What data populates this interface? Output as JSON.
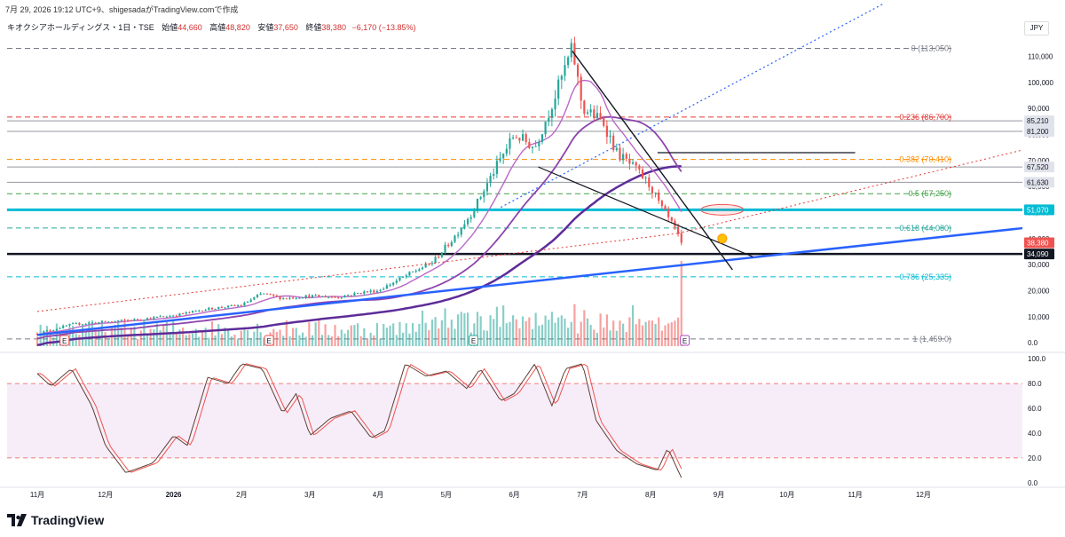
{
  "header": {
    "text": "7月 29, 2026 19:12 UTC+9、shigesadaがTradingView.comで作成"
  },
  "symbol": {
    "name": "キオクシアホールディングス・1日・TSE",
    "open_label": "始値",
    "open": "44,660",
    "high_label": "高値",
    "high": "48,820",
    "low_label": "安値",
    "low": "37,650",
    "close_label": "終値",
    "close": "38,380",
    "change": "−6,170 (−13.85%)"
  },
  "currency": "JPY",
  "brand": "TradingView",
  "colors": {
    "up": "#26a69a",
    "down": "#ef5350",
    "ma_light": "#ba68c8",
    "ma_mid": "#8e44ad",
    "ma_dark": "#5e2c99",
    "trend_blue": "#2962ff",
    "cyan": "#00bcd4"
  },
  "chart_data": [
    {
      "type": "candlestick",
      "name": "price",
      "yticks": [
        "110,000",
        "100,000",
        "90,000",
        "80,000",
        "70,000",
        "60,000",
        "50,000",
        "40,000",
        "30,000",
        "20,000",
        "10,000",
        "0.0"
      ],
      "ytick_values": [
        110000,
        100000,
        90000,
        80000,
        70000,
        60000,
        50000,
        40000,
        30000,
        20000,
        10000,
        0
      ],
      "ylim": [
        -2000,
        118000
      ],
      "xticks": [
        "11月",
        "12月",
        "2026",
        "2月",
        "3月",
        "4月",
        "5月",
        "6月",
        "7月",
        "8月",
        "9月",
        "10月",
        "11月",
        "12月"
      ],
      "close_path": [
        {
          "month": 0,
          "v": 3500
        },
        {
          "month": 0.5,
          "v": 7000
        },
        {
          "month": 1,
          "v": 8000
        },
        {
          "month": 1.5,
          "v": 9000
        },
        {
          "month": 2,
          "v": 10500
        },
        {
          "month": 2.5,
          "v": 13000
        },
        {
          "month": 3,
          "v": 14500
        },
        {
          "month": 3.3,
          "v": 19000
        },
        {
          "month": 3.6,
          "v": 17000
        },
        {
          "month": 4,
          "v": 18000
        },
        {
          "month": 4.4,
          "v": 17500
        },
        {
          "month": 4.8,
          "v": 19500
        },
        {
          "month": 5,
          "v": 20000
        },
        {
          "month": 5.5,
          "v": 27000
        },
        {
          "month": 5.8,
          "v": 31000
        },
        {
          "month": 6.1,
          "v": 40000
        },
        {
          "month": 6.4,
          "v": 51000
        },
        {
          "month": 6.7,
          "v": 66000
        },
        {
          "month": 7.0,
          "v": 80000
        },
        {
          "month": 7.3,
          "v": 75000
        },
        {
          "month": 7.6,
          "v": 95000
        },
        {
          "month": 7.75,
          "v": 106000
        },
        {
          "month": 7.85,
          "v": 113050
        },
        {
          "month": 8.0,
          "v": 90000
        },
        {
          "month": 8.3,
          "v": 85000
        },
        {
          "month": 8.5,
          "v": 73000
        },
        {
          "month": 8.8,
          "v": 66000
        },
        {
          "month": 9.0,
          "v": 60000
        },
        {
          "month": 9.15,
          "v": 52000
        },
        {
          "month": 9.35,
          "v": 44000
        },
        {
          "month": 9.45,
          "v": 38380
        }
      ],
      "fib_levels": [
        {
          "ratio": "0",
          "value": 113050,
          "label": "0 (113,050)",
          "color": "#787b86"
        },
        {
          "ratio": "0.236",
          "value": 86700,
          "label": "0.236 (86,700)",
          "color": "#e53935"
        },
        {
          "ratio": "0.382",
          "value": 70410,
          "label": "0.382 (70,410)",
          "color": "#fb8c00"
        },
        {
          "ratio": "0.5",
          "value": 57250,
          "label": "0.5 (57,250)",
          "color": "#43a047"
        },
        {
          "ratio": "0.618",
          "value": 44080,
          "label": "0.618 (44,080)",
          "color": "#26a69a"
        },
        {
          "ratio": "0.786",
          "value": 25335,
          "label": "0.786 (25,335)",
          "color": "#00bcd4"
        },
        {
          "ratio": "1",
          "value": 1459,
          "label": "1 (1,459.0)",
          "color": "#787b86"
        }
      ],
      "price_badges": [
        {
          "value": 85210,
          "label": "85,210",
          "bg": "#e0e3eb",
          "fg": "#131722"
        },
        {
          "value": 81200,
          "label": "81,200",
          "bg": "#e0e3eb",
          "fg": "#131722"
        },
        {
          "value": 67520,
          "label": "67,520",
          "bg": "#e0e3eb",
          "fg": "#131722"
        },
        {
          "value": 61630,
          "label": "61,630",
          "bg": "#e0e3eb",
          "fg": "#131722"
        },
        {
          "value": 51070,
          "label": "51,070",
          "bg": "#00bcd4",
          "fg": "#ffffff"
        },
        {
          "value": 38380,
          "label": "38,380",
          "bg": "#ef5350",
          "fg": "#ffffff"
        },
        {
          "value": 34090,
          "label": "34,090",
          "bg": "#131722",
          "fg": "#ffffff"
        }
      ],
      "horizontal_lines": [
        {
          "value": 85210,
          "color": "#9598a1",
          "width": 1
        },
        {
          "value": 81200,
          "color": "#9598a1",
          "width": 1
        },
        {
          "value": 67520,
          "color": "#9598a1",
          "width": 1
        },
        {
          "value": 61630,
          "color": "#9598a1",
          "width": 1
        },
        {
          "value": 51070,
          "color": "#00bcd4",
          "width": 3
        },
        {
          "value": 34090,
          "color": "#131722",
          "width": 2.5
        }
      ],
      "earnings_marks": [
        "E",
        "E",
        "E",
        "E"
      ]
    },
    {
      "type": "line",
      "name": "stochastic",
      "yticks": [
        "100.0",
        "80.0",
        "60.0",
        "40.0",
        "20.0",
        "0.0"
      ],
      "ytick_values": [
        100,
        80,
        60,
        40,
        20,
        0
      ],
      "ylim": [
        -3,
        103
      ],
      "band": [
        20,
        80
      ],
      "k_path": [
        {
          "month": 0,
          "v": 88
        },
        {
          "month": 0.2,
          "v": 78
        },
        {
          "month": 0.5,
          "v": 92
        },
        {
          "month": 0.8,
          "v": 62
        },
        {
          "month": 1.0,
          "v": 30
        },
        {
          "month": 1.3,
          "v": 8
        },
        {
          "month": 1.7,
          "v": 16
        },
        {
          "month": 2.0,
          "v": 38
        },
        {
          "month": 2.2,
          "v": 30
        },
        {
          "month": 2.5,
          "v": 85
        },
        {
          "month": 2.8,
          "v": 80
        },
        {
          "month": 3.0,
          "v": 96
        },
        {
          "month": 3.3,
          "v": 92
        },
        {
          "month": 3.6,
          "v": 56
        },
        {
          "month": 3.8,
          "v": 72
        },
        {
          "month": 4.0,
          "v": 38
        },
        {
          "month": 4.3,
          "v": 52
        },
        {
          "month": 4.6,
          "v": 58
        },
        {
          "month": 4.9,
          "v": 36
        },
        {
          "month": 5.1,
          "v": 42
        },
        {
          "month": 5.4,
          "v": 96
        },
        {
          "month": 5.7,
          "v": 86
        },
        {
          "month": 6.0,
          "v": 90
        },
        {
          "month": 6.3,
          "v": 76
        },
        {
          "month": 6.5,
          "v": 92
        },
        {
          "month": 6.8,
          "v": 66
        },
        {
          "month": 7.0,
          "v": 72
        },
        {
          "month": 7.3,
          "v": 96
        },
        {
          "month": 7.55,
          "v": 62
        },
        {
          "month": 7.75,
          "v": 92
        },
        {
          "month": 8.0,
          "v": 96
        },
        {
          "month": 8.2,
          "v": 50
        },
        {
          "month": 8.5,
          "v": 26
        },
        {
          "month": 8.8,
          "v": 15
        },
        {
          "month": 9.1,
          "v": 10
        },
        {
          "month": 9.25,
          "v": 28
        },
        {
          "month": 9.45,
          "v": 4
        }
      ]
    }
  ]
}
